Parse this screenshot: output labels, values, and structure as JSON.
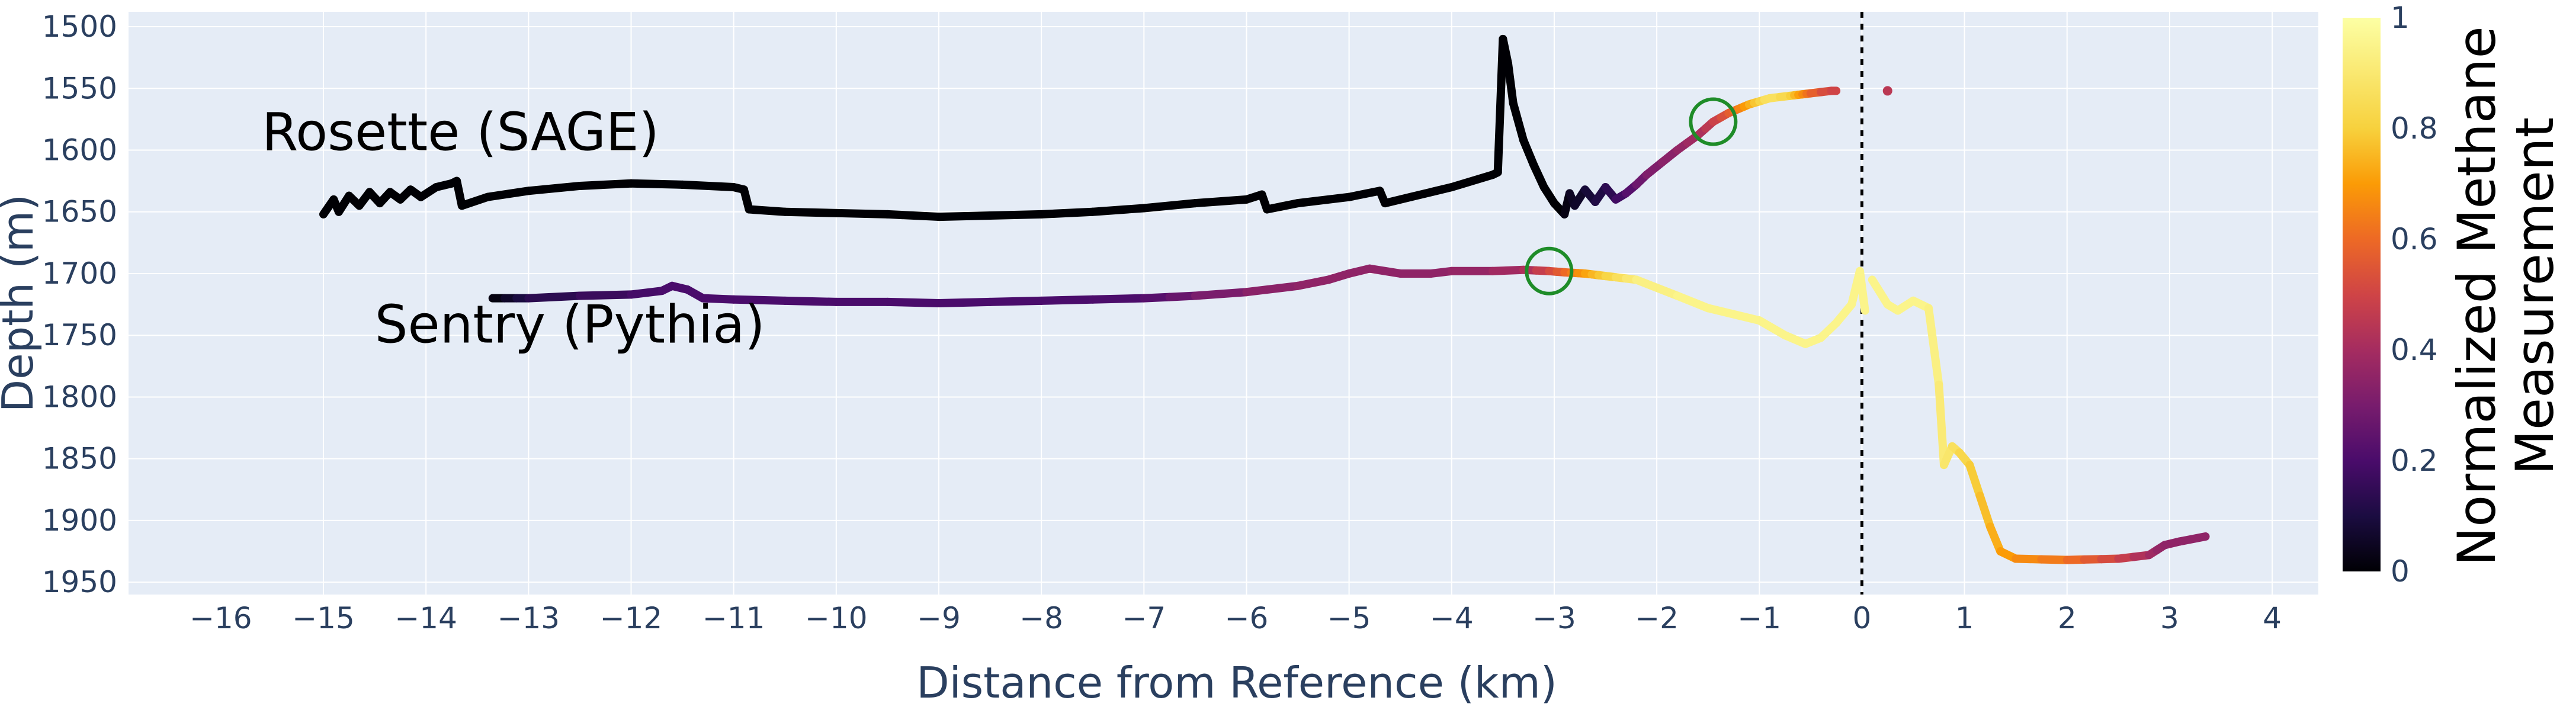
{
  "chart_data": {
    "type": "line",
    "xlabel": "Distance from Reference (km)",
    "ylabel": "Depth (m)",
    "xlim": [
      -16.9,
      4.45
    ],
    "ylim": [
      1960,
      1488
    ],
    "y_reversed": true,
    "x_ticks": [
      "−16",
      "−15",
      "−14",
      "−13",
      "−12",
      "−11",
      "−10",
      "−9",
      "−8",
      "−7",
      "−6",
      "−5",
      "−4",
      "−3",
      "−2",
      "−1",
      "0",
      "1",
      "2",
      "3",
      "4"
    ],
    "x_tick_values": [
      -16,
      -15,
      -14,
      -13,
      -12,
      -11,
      -10,
      -9,
      -8,
      -7,
      -6,
      -5,
      -4,
      -3,
      -2,
      -1,
      0,
      1,
      2,
      3,
      4
    ],
    "y_ticks": [
      "1500",
      "1550",
      "1600",
      "1650",
      "1700",
      "1750",
      "1800",
      "1850",
      "1900",
      "1950"
    ],
    "y_tick_values": [
      1500,
      1550,
      1600,
      1650,
      1700,
      1750,
      1800,
      1850,
      1900,
      1950
    ],
    "grid": true,
    "reference_line_x": 0,
    "colorbar": {
      "title_lines": [
        "Normalized Methane",
        "Measurement"
      ],
      "ticks": [
        "0",
        "0.2",
        "0.4",
        "0.6",
        "0.8",
        "1"
      ],
      "tick_values": [
        0,
        0.2,
        0.4,
        0.6,
        0.8,
        1
      ],
      "colorscale": "inferno"
    },
    "annotations": [
      {
        "text": "Rosette (SAGE)",
        "x": -15.6,
        "y": 1600
      },
      {
        "text": "Sentry (Pythia)",
        "x": -14.5,
        "y": 1756
      }
    ],
    "markers": [
      {
        "x": -1.45,
        "y": 1577,
        "color": "#1e8c28"
      },
      {
        "x": -3.05,
        "y": 1698,
        "color": "#1e8c28"
      }
    ],
    "series": [
      {
        "name": "Rosette (SAGE)",
        "points": [
          [
            -15.0,
            1652,
            0
          ],
          [
            -14.9,
            1640,
            0
          ],
          [
            -14.85,
            1650,
            0
          ],
          [
            -14.75,
            1637,
            0
          ],
          [
            -14.65,
            1645,
            0
          ],
          [
            -14.55,
            1634,
            0
          ],
          [
            -14.45,
            1643,
            0
          ],
          [
            -14.35,
            1634,
            0
          ],
          [
            -14.25,
            1640,
            0
          ],
          [
            -14.15,
            1632,
            0
          ],
          [
            -14.05,
            1638,
            0
          ],
          [
            -13.9,
            1630,
            0
          ],
          [
            -13.75,
            1627,
            0
          ],
          [
            -13.7,
            1625,
            0
          ],
          [
            -13.65,
            1645,
            0
          ],
          [
            -13.4,
            1638,
            0
          ],
          [
            -13.0,
            1633,
            0
          ],
          [
            -12.5,
            1629,
            0
          ],
          [
            -12.0,
            1627,
            0
          ],
          [
            -11.5,
            1628,
            0
          ],
          [
            -11.0,
            1630,
            0
          ],
          [
            -10.9,
            1632,
            0
          ],
          [
            -10.85,
            1648,
            0
          ],
          [
            -10.5,
            1650,
            0
          ],
          [
            -10.0,
            1651,
            0
          ],
          [
            -9.5,
            1652,
            0
          ],
          [
            -9.0,
            1654,
            0
          ],
          [
            -8.5,
            1653,
            0
          ],
          [
            -8.0,
            1652,
            0
          ],
          [
            -7.5,
            1650,
            0
          ],
          [
            -7.0,
            1647,
            0
          ],
          [
            -6.5,
            1643,
            0
          ],
          [
            -6.0,
            1640,
            0
          ],
          [
            -5.85,
            1636,
            0
          ],
          [
            -5.8,
            1648,
            0
          ],
          [
            -5.5,
            1643,
            0
          ],
          [
            -5.0,
            1638,
            0
          ],
          [
            -4.7,
            1633,
            0
          ],
          [
            -4.65,
            1643,
            0
          ],
          [
            -4.4,
            1638,
            0
          ],
          [
            -4.0,
            1630,
            0
          ],
          [
            -3.6,
            1620,
            0
          ],
          [
            -3.55,
            1618,
            0
          ],
          [
            -3.5,
            1510,
            0
          ],
          [
            -3.45,
            1530,
            0
          ],
          [
            -3.4,
            1562,
            0
          ],
          [
            -3.3,
            1592,
            0
          ],
          [
            -3.2,
            1612,
            0
          ],
          [
            -3.1,
            1630,
            0
          ],
          [
            -3.0,
            1643,
            0
          ],
          [
            -2.9,
            1652,
            0
          ],
          [
            -2.85,
            1635,
            0.05
          ],
          [
            -2.8,
            1645,
            0.05
          ],
          [
            -2.7,
            1632,
            0.07
          ],
          [
            -2.6,
            1642,
            0.1
          ],
          [
            -2.5,
            1630,
            0.12
          ],
          [
            -2.4,
            1640,
            0.16
          ],
          [
            -2.3,
            1635,
            0.2
          ],
          [
            -2.2,
            1628,
            0.25
          ],
          [
            -2.1,
            1620,
            0.3
          ],
          [
            -1.95,
            1610,
            0.33
          ],
          [
            -1.8,
            1600,
            0.35
          ],
          [
            -1.6,
            1588,
            0.4
          ],
          [
            -1.45,
            1577,
            0.47
          ],
          [
            -1.3,
            1570,
            0.55
          ],
          [
            -1.1,
            1563,
            0.72
          ],
          [
            -0.9,
            1558,
            0.88
          ],
          [
            -0.7,
            1556,
            0.82
          ],
          [
            -0.5,
            1554,
            0.6
          ],
          [
            -0.3,
            1552,
            0.5
          ],
          [
            -0.25,
            1552,
            0.5
          ]
        ],
        "isolated_point": [
          0.25,
          1552,
          0.45
        ]
      },
      {
        "name": "Sentry (Pythia)",
        "points": [
          [
            -13.35,
            1720,
            0
          ],
          [
            -13.0,
            1720,
            0.12
          ],
          [
            -12.5,
            1718,
            0.15
          ],
          [
            -12.0,
            1717,
            0.18
          ],
          [
            -11.7,
            1714,
            0.2
          ],
          [
            -11.6,
            1710,
            0.2
          ],
          [
            -11.45,
            1713,
            0.2
          ],
          [
            -11.3,
            1720,
            0.2
          ],
          [
            -11.0,
            1721,
            0.2
          ],
          [
            -10.5,
            1722,
            0.2
          ],
          [
            -10.0,
            1723,
            0.2
          ],
          [
            -9.5,
            1723,
            0.2
          ],
          [
            -9.0,
            1724,
            0.2
          ],
          [
            -8.5,
            1723,
            0.2
          ],
          [
            -8.0,
            1722,
            0.2
          ],
          [
            -7.5,
            1721,
            0.2
          ],
          [
            -7.0,
            1720,
            0.21
          ],
          [
            -6.5,
            1718,
            0.28
          ],
          [
            -6.0,
            1715,
            0.33
          ],
          [
            -5.5,
            1710,
            0.35
          ],
          [
            -5.2,
            1705,
            0.35
          ],
          [
            -5.0,
            1700,
            0.35
          ],
          [
            -4.8,
            1696,
            0.35
          ],
          [
            -4.5,
            1700,
            0.35
          ],
          [
            -4.2,
            1700,
            0.35
          ],
          [
            -4.0,
            1698,
            0.35
          ],
          [
            -3.6,
            1698,
            0.38
          ],
          [
            -3.3,
            1697,
            0.4
          ],
          [
            -3.05,
            1698,
            0.5
          ],
          [
            -2.9,
            1699,
            0.58
          ],
          [
            -2.7,
            1700,
            0.7
          ],
          [
            -2.5,
            1702,
            0.8
          ],
          [
            -2.2,
            1705,
            0.92
          ],
          [
            -1.8,
            1718,
            0.95
          ],
          [
            -1.5,
            1728,
            0.95
          ],
          [
            -1.0,
            1738,
            0.95
          ],
          [
            -0.75,
            1750,
            0.95
          ],
          [
            -0.55,
            1757,
            0.95
          ],
          [
            -0.4,
            1752,
            0.95
          ],
          [
            -0.25,
            1740,
            0.95
          ],
          [
            -0.1,
            1725,
            0.95
          ],
          [
            -0.02,
            1698,
            0.95
          ],
          [
            0.03,
            1730,
            0.95
          ]
        ],
        "points_2": [
          [
            0.1,
            1705,
            0.95
          ],
          [
            0.25,
            1725,
            0.95
          ],
          [
            0.35,
            1730,
            0.95
          ],
          [
            0.5,
            1722,
            0.95
          ],
          [
            0.65,
            1728,
            0.95
          ],
          [
            0.75,
            1790,
            0.92
          ],
          [
            0.8,
            1855,
            0.9
          ],
          [
            0.88,
            1840,
            0.88
          ],
          [
            0.95,
            1845,
            0.85
          ],
          [
            1.05,
            1855,
            0.8
          ],
          [
            1.15,
            1880,
            0.78
          ],
          [
            1.25,
            1905,
            0.75
          ],
          [
            1.35,
            1925,
            0.72
          ],
          [
            1.5,
            1931,
            0.68
          ],
          [
            2.0,
            1932,
            0.62
          ],
          [
            2.5,
            1931,
            0.5
          ],
          [
            2.8,
            1928,
            0.4
          ],
          [
            2.95,
            1920,
            0.35
          ],
          [
            3.1,
            1917,
            0.35
          ],
          [
            3.35,
            1913,
            0.35
          ]
        ]
      }
    ]
  }
}
